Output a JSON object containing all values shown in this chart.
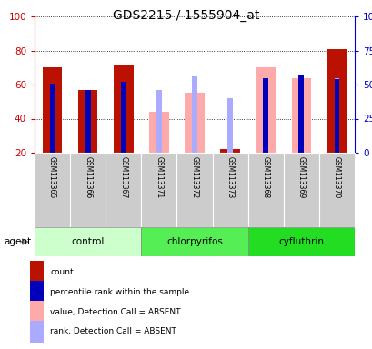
{
  "title": "GDS2215 / 1555904_at",
  "samples": [
    "GSM113365",
    "GSM113366",
    "GSM113367",
    "GSM113371",
    "GSM113372",
    "GSM113373",
    "GSM113368",
    "GSM113369",
    "GSM113370"
  ],
  "groups": [
    {
      "name": "control",
      "indices": [
        0,
        1,
        2
      ],
      "color": "#CCFFCC"
    },
    {
      "name": "chlorpyrifos",
      "indices": [
        3,
        4,
        5
      ],
      "color": "#55EE55"
    },
    {
      "name": "cyfluthrin",
      "indices": [
        6,
        7,
        8
      ],
      "color": "#22DD22"
    }
  ],
  "count_values": [
    70,
    57,
    72,
    null,
    null,
    22,
    null,
    null,
    81
  ],
  "rank_values": [
    51,
    46,
    52,
    null,
    null,
    null,
    55,
    57,
    54
  ],
  "absent_value": [
    null,
    null,
    null,
    44,
    55,
    null,
    70,
    64,
    null
  ],
  "absent_rank": [
    null,
    null,
    null,
    46,
    56,
    40,
    null,
    57,
    55
  ],
  "ylim": [
    20,
    100
  ],
  "y2lim": [
    0,
    100
  ],
  "yticks": [
    20,
    40,
    60,
    80,
    100
  ],
  "y2ticks": [
    0,
    25,
    50,
    75,
    100
  ],
  "y2labels": [
    "0",
    "25",
    "50",
    "75",
    "100%"
  ],
  "left_color": "#CC0000",
  "right_color": "#0000CC",
  "count_color": "#BB1100",
  "rank_color": "#0000BB",
  "absent_value_color": "#FFAAAA",
  "absent_rank_color": "#AAAAFF",
  "legend_items": [
    {
      "label": "count",
      "color": "#BB1100"
    },
    {
      "label": "percentile rank within the sample",
      "color": "#0000BB"
    },
    {
      "label": "value, Detection Call = ABSENT",
      "color": "#FFAAAA"
    },
    {
      "label": "rank, Detection Call = ABSENT",
      "color": "#AAAAFF"
    }
  ]
}
